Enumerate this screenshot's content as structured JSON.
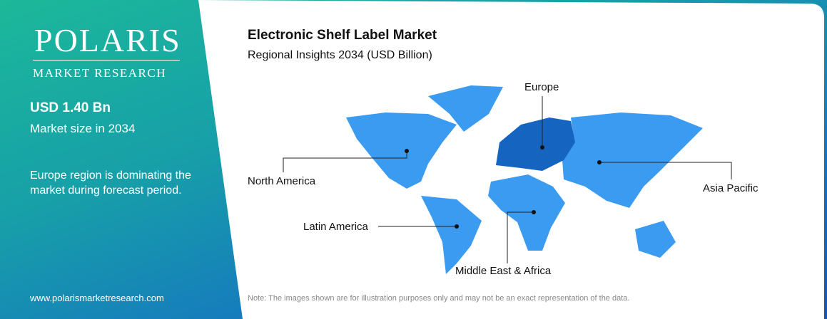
{
  "logo": {
    "name": "POLARIS",
    "tagline": "MARKET RESEARCH"
  },
  "sidebar": {
    "market_size": "USD 1.40 Bn",
    "market_size_label": "Market size in 2034",
    "insight": "Europe region is dominating the market during forecast period.",
    "website": "www.polarismarketresearch.com"
  },
  "header": {
    "title": "Electronic Shelf Label Market",
    "subtitle": "Regional Insights 2034 (USD Billion)"
  },
  "map": {
    "regions": [
      "Europe",
      "North America",
      "Asia Pacific",
      "Latin America",
      "Middle East & Africa"
    ]
  },
  "note": "Note: The images shown are for illustration purposes only and may not be an exact representation of the data."
}
